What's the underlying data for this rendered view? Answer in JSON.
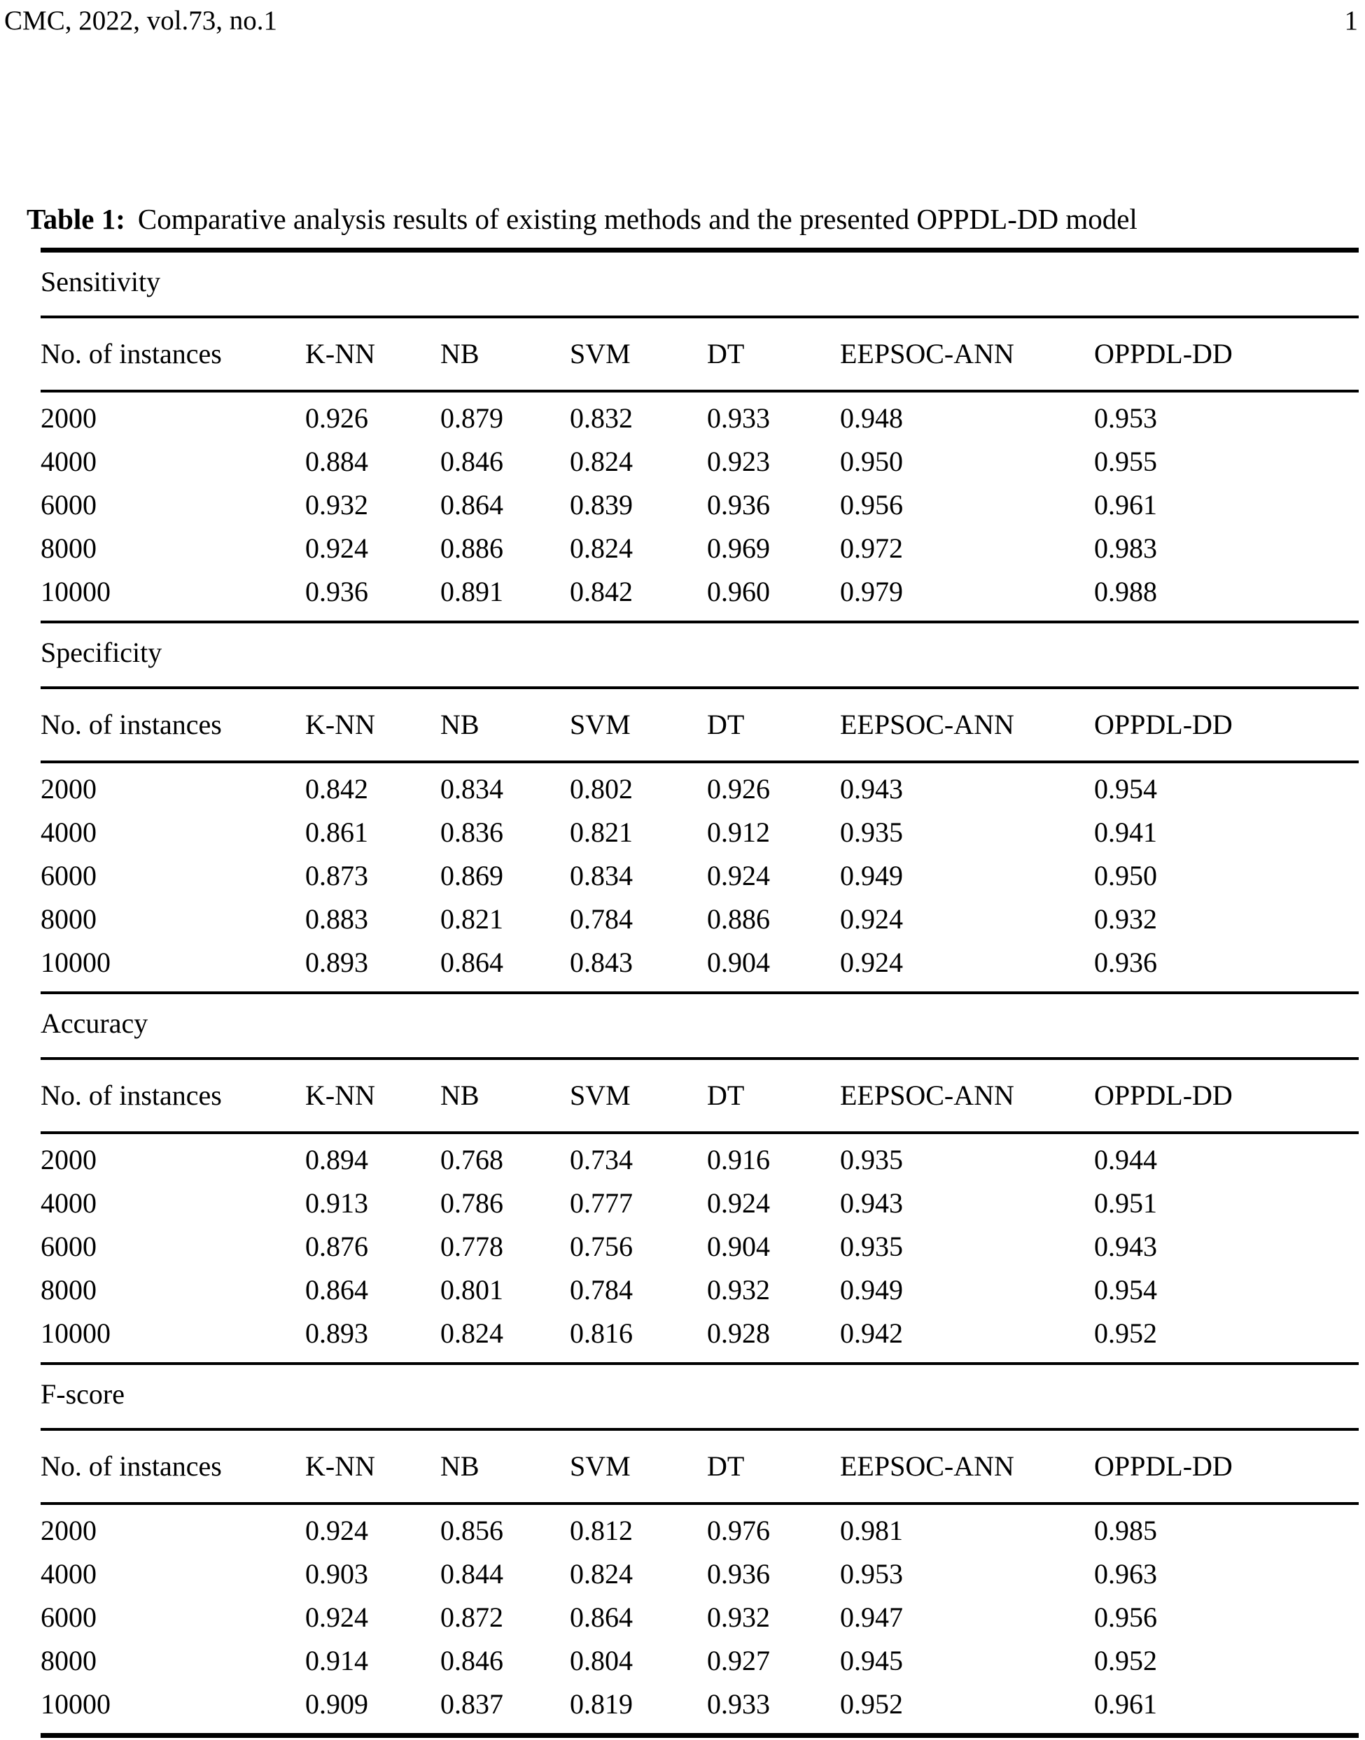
{
  "header": {
    "journal": "CMC, 2022, vol.73, no.1",
    "page_number": "1"
  },
  "table": {
    "caption_label": "Table 1:",
    "caption_text": "Comparative analysis results of existing methods and the presented OPPDL-DD model",
    "columns": [
      "No. of instances",
      "K-NN",
      "NB",
      "SVM",
      "DT",
      "EEPSOC-ANN",
      "OPPDL-DD"
    ],
    "sections": [
      {
        "metric": "Sensitivity",
        "rows": [
          {
            "instances": "2000",
            "values": [
              "0.926",
              "0.879",
              "0.832",
              "0.933",
              "0.948",
              "0.953"
            ]
          },
          {
            "instances": "4000",
            "values": [
              "0.884",
              "0.846",
              "0.824",
              "0.923",
              "0.950",
              "0.955"
            ]
          },
          {
            "instances": "6000",
            "values": [
              "0.932",
              "0.864",
              "0.839",
              "0.936",
              "0.956",
              "0.961"
            ]
          },
          {
            "instances": "8000",
            "values": [
              "0.924",
              "0.886",
              "0.824",
              "0.969",
              "0.972",
              "0.983"
            ]
          },
          {
            "instances": "10000",
            "values": [
              "0.936",
              "0.891",
              "0.842",
              "0.960",
              "0.979",
              "0.988"
            ]
          }
        ]
      },
      {
        "metric": "Specificity",
        "rows": [
          {
            "instances": "2000",
            "values": [
              "0.842",
              "0.834",
              "0.802",
              "0.926",
              "0.943",
              "0.954"
            ]
          },
          {
            "instances": "4000",
            "values": [
              "0.861",
              "0.836",
              "0.821",
              "0.912",
              "0.935",
              "0.941"
            ]
          },
          {
            "instances": "6000",
            "values": [
              "0.873",
              "0.869",
              "0.834",
              "0.924",
              "0.949",
              "0.950"
            ]
          },
          {
            "instances": "8000",
            "values": [
              "0.883",
              "0.821",
              "0.784",
              "0.886",
              "0.924",
              "0.932"
            ]
          },
          {
            "instances": "10000",
            "values": [
              "0.893",
              "0.864",
              "0.843",
              "0.904",
              "0.924",
              "0.936"
            ]
          }
        ]
      },
      {
        "metric": "Accuracy",
        "rows": [
          {
            "instances": "2000",
            "values": [
              "0.894",
              "0.768",
              "0.734",
              "0.916",
              "0.935",
              "0.944"
            ]
          },
          {
            "instances": "4000",
            "values": [
              "0.913",
              "0.786",
              "0.777",
              "0.924",
              "0.943",
              "0.951"
            ]
          },
          {
            "instances": "6000",
            "values": [
              "0.876",
              "0.778",
              "0.756",
              "0.904",
              "0.935",
              "0.943"
            ]
          },
          {
            "instances": "8000",
            "values": [
              "0.864",
              "0.801",
              "0.784",
              "0.932",
              "0.949",
              "0.954"
            ]
          },
          {
            "instances": "10000",
            "values": [
              "0.893",
              "0.824",
              "0.816",
              "0.928",
              "0.942",
              "0.952"
            ]
          }
        ]
      },
      {
        "metric": "F-score",
        "rows": [
          {
            "instances": "2000",
            "values": [
              "0.924",
              "0.856",
              "0.812",
              "0.976",
              "0.981",
              "0.985"
            ]
          },
          {
            "instances": "4000",
            "values": [
              "0.903",
              "0.844",
              "0.824",
              "0.936",
              "0.953",
              "0.963"
            ]
          },
          {
            "instances": "6000",
            "values": [
              "0.924",
              "0.872",
              "0.864",
              "0.932",
              "0.947",
              "0.956"
            ]
          },
          {
            "instances": "8000",
            "values": [
              "0.914",
              "0.846",
              "0.804",
              "0.927",
              "0.945",
              "0.952"
            ]
          },
          {
            "instances": "10000",
            "values": [
              "0.909",
              "0.837",
              "0.819",
              "0.933",
              "0.952",
              "0.961"
            ]
          }
        ]
      }
    ]
  },
  "colors": {
    "text": "#000000",
    "background": "#ffffff",
    "rule": "#000000"
  }
}
